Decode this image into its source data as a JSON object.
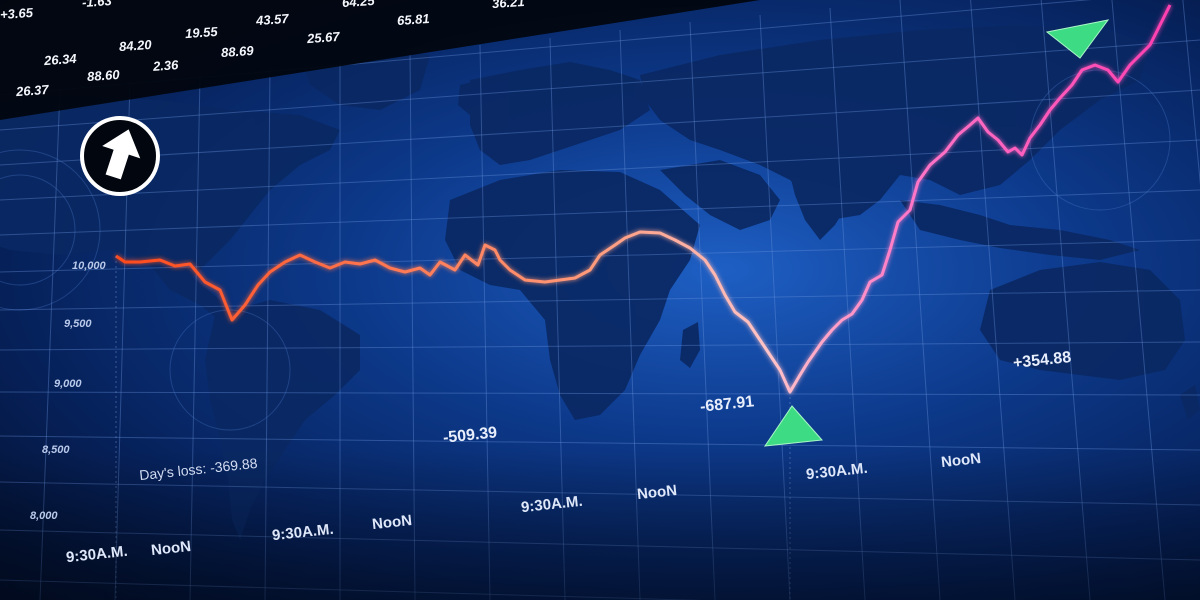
{
  "ticker": {
    "row1": [
      "+3.65",
      "-1.63",
      "64.25",
      "36.21"
    ],
    "row2": [
      "26.34",
      "84.20",
      "19.55",
      "43.57",
      "65.81"
    ],
    "row3": [
      "26.37",
      "88.60",
      "2.36",
      "88.69",
      "25.67"
    ]
  },
  "axis": {
    "ticks": [
      "10,000",
      "9,500",
      "9,000",
      "8,500",
      "8,000"
    ]
  },
  "time_labels": {
    "row1": [
      "9:30A.M.",
      "NooN"
    ],
    "row2": [
      "9:30A.M.",
      "NooN"
    ],
    "row3": [
      "9:30A.M.",
      "NooN"
    ],
    "row4": [
      "9:30A.M.",
      "NooN"
    ]
  },
  "changes": {
    "day_loss": "Day's loss: -369.88",
    "c1": "-509.39",
    "c2": "-687.91",
    "c3": "+354.88"
  },
  "icons": {
    "up_arrow": "up-arrow-circle-icon",
    "up_triangle": "green-up-triangle-icon",
    "down_triangle": "green-down-triangle-icon"
  },
  "colors": {
    "background": "#0d3a8c",
    "map_land": "#0a2a66",
    "grid": "#5b86d6",
    "line_start": "#ff5a2a",
    "line_mid": "#ffb0b0",
    "line_end": "#ff3fb0",
    "marker": "#3ddc84"
  }
}
